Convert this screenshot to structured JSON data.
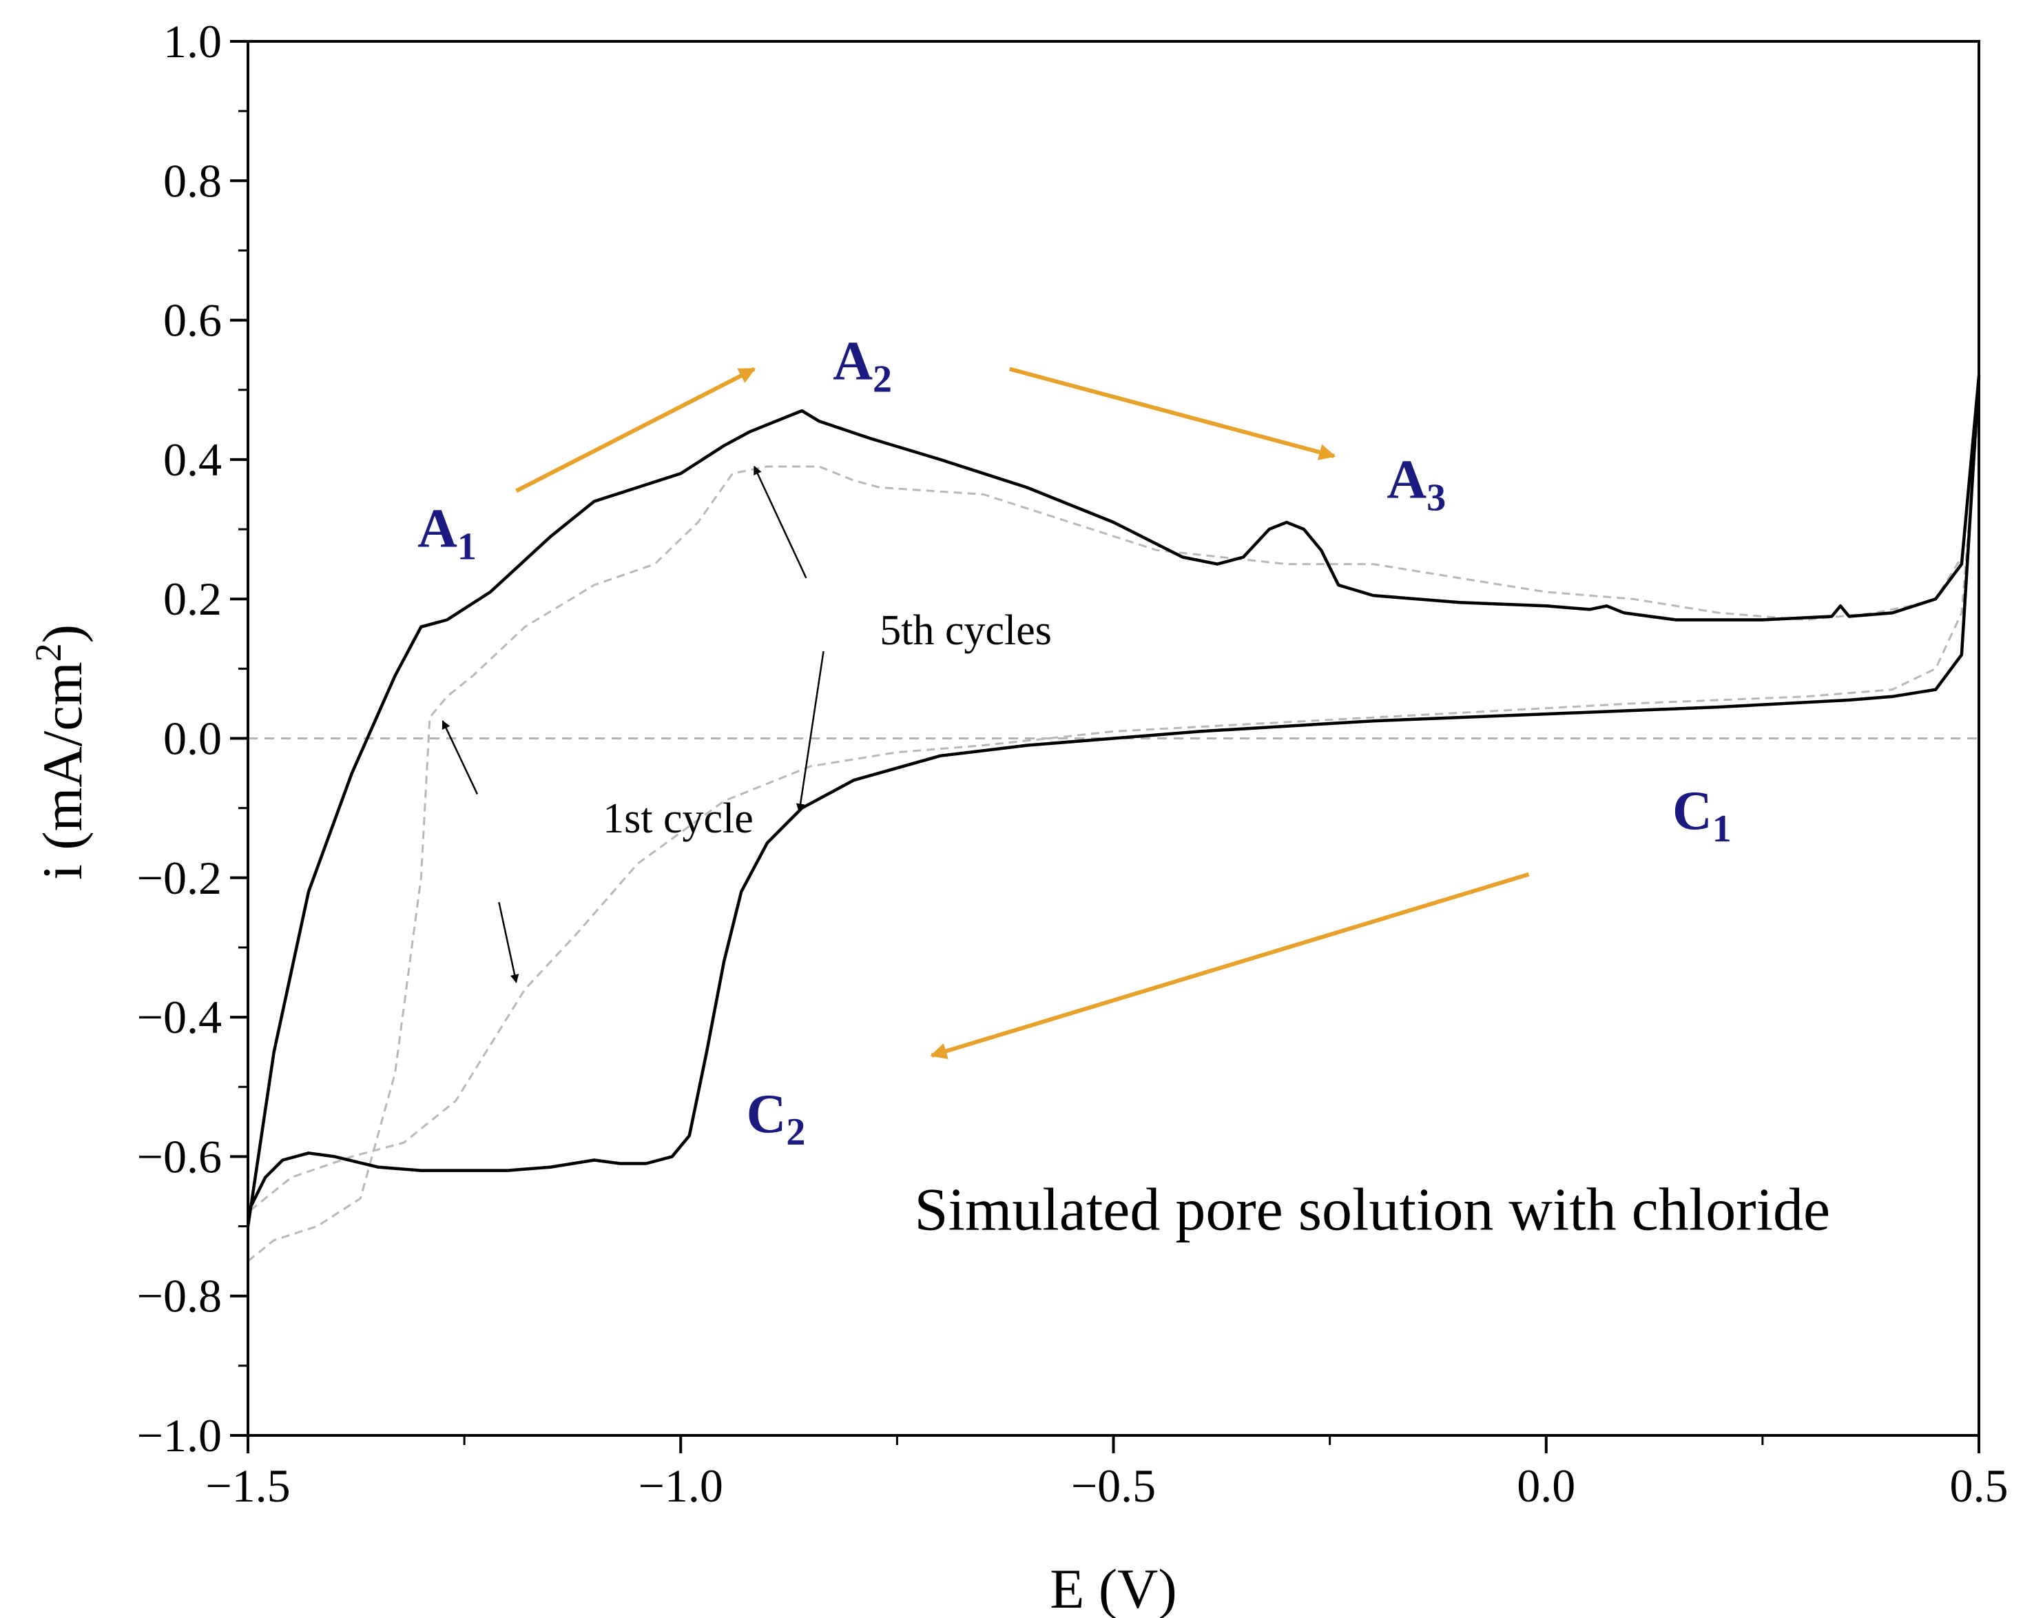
{
  "chart_data": {
    "type": "line",
    "title": "",
    "xlabel": "E (V)",
    "ylabel_main": "i (mA/cm",
    "ylabel_sup": "2",
    "ylabel_close": ")",
    "xlim": [
      -1.5,
      0.5
    ],
    "ylim": [
      -1.0,
      1.0
    ],
    "x_ticks": [
      -1.5,
      -1.0,
      -0.5,
      0.0,
      0.5
    ],
    "x_tick_labels": [
      "−1.5",
      "−1.0",
      "−0.5",
      "0.0",
      "0.5"
    ],
    "y_ticks": [
      -1.0,
      -0.8,
      -0.6,
      -0.4,
      -0.2,
      0.0,
      0.2,
      0.4,
      0.6,
      0.8,
      1.0
    ],
    "y_tick_labels": [
      "−1.0",
      "−0.8",
      "−0.6",
      "−0.4",
      "−0.2",
      "0.0",
      "0.2",
      "0.4",
      "0.6",
      "0.8",
      "1.0"
    ],
    "zero_line": true,
    "series": [
      {
        "name": "1st cycle",
        "style": "dashed",
        "color": "#b8b8b8",
        "points": [
          [
            -1.5,
            -0.75
          ],
          [
            -1.47,
            -0.72
          ],
          [
            -1.42,
            -0.7
          ],
          [
            -1.37,
            -0.66
          ],
          [
            -1.33,
            -0.48
          ],
          [
            -1.3,
            -0.2
          ],
          [
            -1.29,
            0.03
          ],
          [
            -1.27,
            0.06
          ],
          [
            -1.24,
            0.09
          ],
          [
            -1.18,
            0.16
          ],
          [
            -1.1,
            0.22
          ],
          [
            -1.03,
            0.25
          ],
          [
            -0.98,
            0.31
          ],
          [
            -0.94,
            0.38
          ],
          [
            -0.9,
            0.39
          ],
          [
            -0.84,
            0.39
          ],
          [
            -0.8,
            0.37
          ],
          [
            -0.77,
            0.36
          ],
          [
            -0.65,
            0.35
          ],
          [
            -0.55,
            0.31
          ],
          [
            -0.45,
            0.27
          ],
          [
            -0.3,
            0.25
          ],
          [
            -0.2,
            0.25
          ],
          [
            -0.1,
            0.23
          ],
          [
            0.0,
            0.21
          ],
          [
            0.1,
            0.2
          ],
          [
            0.2,
            0.18
          ],
          [
            0.3,
            0.17
          ],
          [
            0.38,
            0.18
          ],
          [
            0.42,
            0.19
          ],
          [
            0.45,
            0.2
          ],
          [
            0.48,
            0.26
          ],
          [
            0.5,
            0.48
          ],
          [
            0.48,
            0.18
          ],
          [
            0.45,
            0.1
          ],
          [
            0.4,
            0.07
          ],
          [
            0.3,
            0.06
          ],
          [
            0.1,
            0.05
          ],
          [
            -0.2,
            0.03
          ],
          [
            -0.5,
            0.01
          ],
          [
            -0.65,
            -0.01
          ],
          [
            -0.75,
            -0.02
          ],
          [
            -0.85,
            -0.04
          ],
          [
            -0.95,
            -0.09
          ],
          [
            -1.05,
            -0.18
          ],
          [
            -1.12,
            -0.28
          ],
          [
            -1.18,
            -0.36
          ],
          [
            -1.22,
            -0.44
          ],
          [
            -1.26,
            -0.52
          ],
          [
            -1.32,
            -0.58
          ],
          [
            -1.38,
            -0.6
          ],
          [
            -1.45,
            -0.63
          ],
          [
            -1.5,
            -0.68
          ]
        ]
      },
      {
        "name": "5th cycles",
        "style": "solid",
        "color": "#000000",
        "points": [
          [
            -1.5,
            -0.7
          ],
          [
            -1.47,
            -0.45
          ],
          [
            -1.43,
            -0.22
          ],
          [
            -1.38,
            -0.05
          ],
          [
            -1.33,
            0.09
          ],
          [
            -1.3,
            0.16
          ],
          [
            -1.27,
            0.17
          ],
          [
            -1.22,
            0.21
          ],
          [
            -1.15,
            0.29
          ],
          [
            -1.1,
            0.34
          ],
          [
            -1.05,
            0.36
          ],
          [
            -1.0,
            0.38
          ],
          [
            -0.95,
            0.42
          ],
          [
            -0.92,
            0.44
          ],
          [
            -0.88,
            0.46
          ],
          [
            -0.86,
            0.47
          ],
          [
            -0.84,
            0.455
          ],
          [
            -0.78,
            0.43
          ],
          [
            -0.7,
            0.4
          ],
          [
            -0.6,
            0.36
          ],
          [
            -0.5,
            0.31
          ],
          [
            -0.42,
            0.26
          ],
          [
            -0.38,
            0.25
          ],
          [
            -0.35,
            0.26
          ],
          [
            -0.32,
            0.3
          ],
          [
            -0.3,
            0.31
          ],
          [
            -0.28,
            0.3
          ],
          [
            -0.26,
            0.27
          ],
          [
            -0.24,
            0.22
          ],
          [
            -0.2,
            0.205
          ],
          [
            -0.1,
            0.195
          ],
          [
            0.0,
            0.19
          ],
          [
            0.05,
            0.185
          ],
          [
            0.07,
            0.19
          ],
          [
            0.09,
            0.18
          ],
          [
            0.15,
            0.17
          ],
          [
            0.25,
            0.17
          ],
          [
            0.33,
            0.175
          ],
          [
            0.34,
            0.19
          ],
          [
            0.35,
            0.175
          ],
          [
            0.4,
            0.18
          ],
          [
            0.45,
            0.2
          ],
          [
            0.48,
            0.25
          ],
          [
            0.5,
            0.52
          ],
          [
            0.48,
            0.12
          ],
          [
            0.45,
            0.07
          ],
          [
            0.4,
            0.06
          ],
          [
            0.35,
            0.055
          ],
          [
            0.2,
            0.045
          ],
          [
            0.0,
            0.035
          ],
          [
            -0.2,
            0.025
          ],
          [
            -0.4,
            0.01
          ],
          [
            -0.5,
            0.0
          ],
          [
            -0.6,
            -0.01
          ],
          [
            -0.7,
            -0.025
          ],
          [
            -0.8,
            -0.06
          ],
          [
            -0.86,
            -0.1
          ],
          [
            -0.9,
            -0.15
          ],
          [
            -0.93,
            -0.22
          ],
          [
            -0.95,
            -0.32
          ],
          [
            -0.97,
            -0.45
          ],
          [
            -0.99,
            -0.57
          ],
          [
            -1.01,
            -0.6
          ],
          [
            -1.04,
            -0.61
          ],
          [
            -1.07,
            -0.61
          ],
          [
            -1.1,
            -0.605
          ],
          [
            -1.15,
            -0.615
          ],
          [
            -1.2,
            -0.62
          ],
          [
            -1.3,
            -0.62
          ],
          [
            -1.35,
            -0.615
          ],
          [
            -1.4,
            -0.6
          ],
          [
            -1.43,
            -0.595
          ],
          [
            -1.46,
            -0.605
          ],
          [
            -1.48,
            -0.63
          ],
          [
            -1.5,
            -0.68
          ]
        ]
      }
    ],
    "peak_labels": [
      {
        "letter": "A",
        "sub": "1",
        "x": -1.27,
        "y": 0.275
      },
      {
        "letter": "A",
        "sub": "2",
        "x": -0.79,
        "y": 0.515
      },
      {
        "letter": "A",
        "sub": "3",
        "x": -0.15,
        "y": 0.345
      },
      {
        "letter": "C",
        "sub": "1",
        "x": 0.18,
        "y": -0.13
      },
      {
        "letter": "C",
        "sub": "2",
        "x": -0.89,
        "y": -0.565
      }
    ],
    "label_color": "#1a1a80",
    "scan_arrows": [
      {
        "from": [
          -1.19,
          0.355
        ],
        "to": [
          -0.915,
          0.53
        ]
      },
      {
        "from": [
          -0.62,
          0.53
        ],
        "to": [
          -0.245,
          0.405
        ]
      },
      {
        "from": [
          -0.02,
          -0.195
        ],
        "to": [
          -0.71,
          -0.455
        ]
      }
    ],
    "scan_arrow_color": "#e8a22c",
    "annotations": [
      {
        "text": "5th cycles",
        "x": -0.77,
        "y": 0.135
      },
      {
        "text": "1st cycle",
        "x": -1.09,
        "y": -0.135
      },
      {
        "text": "Simulated pore solution with chloride",
        "x": -0.73,
        "y": -0.705
      }
    ],
    "pointer_arrows": [
      {
        "from": [
          -0.855,
          0.23
        ],
        "to": [
          -0.915,
          0.39
        ]
      },
      {
        "from": [
          -0.835,
          0.125
        ],
        "to": [
          -0.863,
          -0.105
        ]
      },
      {
        "from": [
          -1.235,
          -0.08
        ],
        "to": [
          -1.275,
          0.025
        ]
      },
      {
        "from": [
          -1.21,
          -0.235
        ],
        "to": [
          -1.19,
          -0.35
        ]
      }
    ]
  }
}
